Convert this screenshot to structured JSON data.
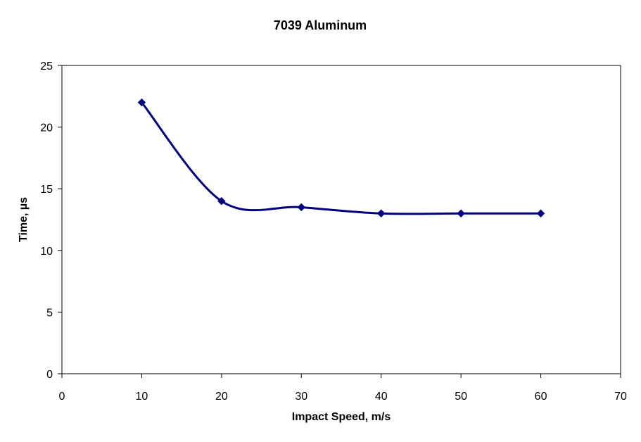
{
  "chart_data": {
    "type": "line",
    "title": "7039 Aluminum",
    "xlabel": "Impact Speed, m/s",
    "ylabel": "Time, µs",
    "xlim": [
      0,
      70
    ],
    "ylim": [
      0,
      25
    ],
    "x_ticks": [
      "0",
      "10",
      "20",
      "30",
      "40",
      "50",
      "60",
      "70"
    ],
    "y_ticks": [
      "0",
      "5",
      "10",
      "15",
      "20",
      "25"
    ],
    "grid": false,
    "legend": "none",
    "smoothed": true,
    "marker": "diamond",
    "series": [
      {
        "color": "#000080",
        "points": [
          {
            "x": 10,
            "y": 22
          },
          {
            "x": 20,
            "y": 14
          },
          {
            "x": 30,
            "y": 13.5
          },
          {
            "x": 40,
            "y": 13
          },
          {
            "x": 50,
            "y": 13
          },
          {
            "x": 60,
            "y": 13
          }
        ]
      }
    ]
  }
}
